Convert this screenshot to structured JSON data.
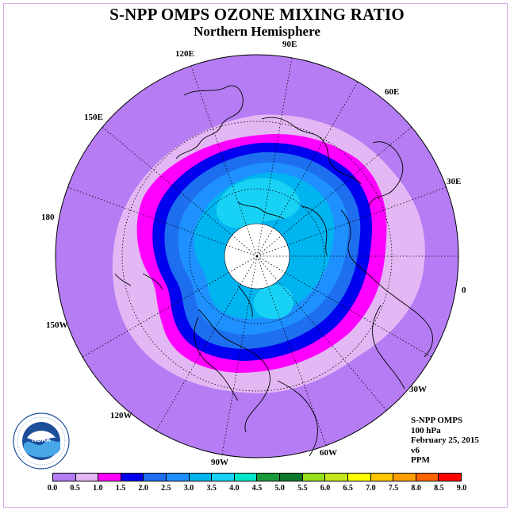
{
  "title": "S-NPP OMPS OZONE MIXING RATIO",
  "subtitle": "Northern Hemisphere",
  "longitude_labels": {
    "e120": "120E",
    "e90": "90E",
    "e60": "60E",
    "e150": "150E",
    "e30": "30E",
    "d180": "180",
    "d0": "0",
    "w150": "150W",
    "w30": "30W",
    "w120": "120W",
    "w60": "60W",
    "w90": "90W"
  },
  "info": {
    "instrument": "S-NPP OMPS",
    "level": "100 hPa",
    "date": "February 25, 2015",
    "version": "v6",
    "units": "PPM"
  },
  "logo": {
    "name": "NOAA",
    "ring_text": "NATIONAL OCEANIC AND ATMOSPHERIC ADMINISTRATION",
    "ring_text_bottom": "U.S. DEPARTMENT OF COMMERCE"
  },
  "colorbar": {
    "ticks": [
      "0.0",
      "0.5",
      "1.0",
      "1.5",
      "2.0",
      "2.5",
      "3.0",
      "3.5",
      "4.0",
      "4.5",
      "5.0",
      "5.5",
      "6.0",
      "6.5",
      "7.0",
      "7.5",
      "8.0",
      "8.5",
      "9.0"
    ],
    "colors": [
      "#b57cf3",
      "#e3b7f4",
      "#ff00ff",
      "#0000ee",
      "#1e6ef0",
      "#1e90ff",
      "#00b4f0",
      "#18d2f5",
      "#00e6c8",
      "#1a9a3a",
      "#0a7a2a",
      "#96e01e",
      "#c8e61e",
      "#ffff00",
      "#ffc800",
      "#ffa000",
      "#ff6400",
      "#ff0000",
      "#8b5a2b"
    ]
  },
  "contour_colors": {
    "outer": "#b57cf3",
    "band05": "#e3b7f4",
    "band10": "#ff00ff",
    "band15": "#0000ee",
    "band20": "#1e6ef0",
    "band25": "#1e90ff",
    "band30": "#00b4f0",
    "band35": "#18d2f5",
    "pole": "#ffffff"
  }
}
